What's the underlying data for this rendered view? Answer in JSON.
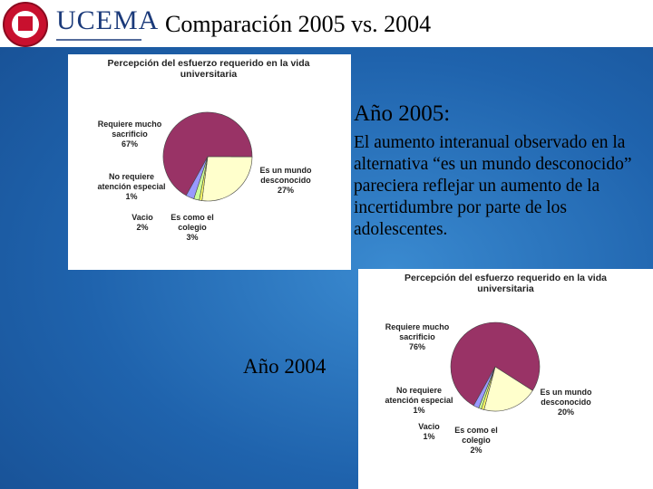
{
  "header": {
    "logo": "UCEMA",
    "title": "Comparación 2005 vs. 2004"
  },
  "text": {
    "year_2005": "Año 2005:",
    "paragraph": "El aumento interanual observado en la alternativa “es un mundo desconocido” pareciera reflejar un aumento de la incertidumbre por parte de los adolescentes.",
    "year_2004": "Año 2004"
  },
  "chart_data": [
    {
      "type": "pie",
      "title": "Percepción del esfuerzo requerido en la vida universitaria",
      "categories": [
        "Requiere mucho sacrificio",
        "Es un mundo desconocido",
        "No requiere atención especial",
        "Vacio",
        "Es como el colegio"
      ],
      "values": [
        67,
        27,
        1,
        2,
        3
      ],
      "value_labels": [
        "67%",
        "27%",
        "1%",
        "2%",
        "3%"
      ],
      "colors": [
        "#993366",
        "#ffffcc",
        "#ffff66",
        "#ccff99",
        "#9999ff"
      ]
    },
    {
      "type": "pie",
      "title": "Percepción del esfuerzo requerido en la vida universitaria",
      "categories": [
        "Requiere mucho sacrificio",
        "Es un mundo desconocido",
        "No requiere atención especial",
        "Vacio",
        "Es como el colegio"
      ],
      "values": [
        76,
        20,
        1,
        1,
        2
      ],
      "value_labels": [
        "76%",
        "20%",
        "1%",
        "1%",
        "2%"
      ],
      "colors": [
        "#993366",
        "#ffffcc",
        "#ffff66",
        "#ccff99",
        "#9999ff"
      ]
    }
  ]
}
